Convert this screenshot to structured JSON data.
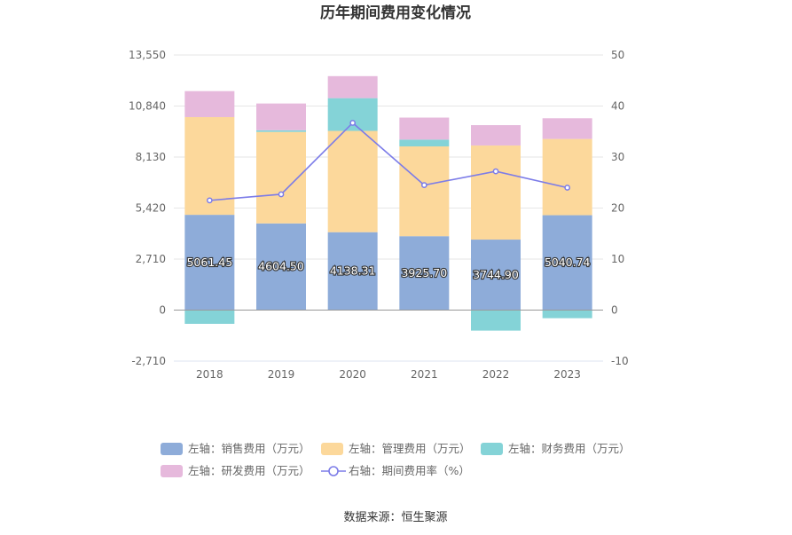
{
  "title": "历年期间费用变化情况",
  "source": "数据来源：恒生聚源",
  "colors": {
    "sales": "#8eacd9",
    "admin": "#fcd89b",
    "finance": "#84d3d7",
    "rd": "#e6b9dc",
    "rate_line": "#7c7ce8"
  },
  "chart_data": {
    "type": "bar",
    "stacked": true,
    "categories": [
      "2018",
      "2019",
      "2020",
      "2021",
      "2022",
      "2023"
    ],
    "series": [
      {
        "name": "左轴：销售费用（万元）",
        "axis": "left",
        "color": "#8eacd9",
        "values": [
          5061.45,
          4604.5,
          4138.31,
          3925.7,
          3744.9,
          5040.74
        ]
      },
      {
        "name": "左轴：管理费用（万元）",
        "axis": "left",
        "color": "#fcd89b",
        "values": [
          5190,
          4860,
          5380,
          4770,
          5000,
          4050
        ]
      },
      {
        "name": "左轴：财务费用（万元）",
        "axis": "left",
        "color": "#84d3d7",
        "values": [
          -730,
          90,
          1740,
          360,
          -1090,
          -430
        ]
      },
      {
        "name": "左轴：研发费用（万元）",
        "axis": "left",
        "color": "#e6b9dc",
        "values": [
          1380,
          1420,
          1170,
          1170,
          1080,
          1100
        ]
      },
      {
        "name": "右轴：期间费用率（%）",
        "axis": "right",
        "type": "line",
        "color": "#7c7ce8",
        "values": [
          21.5,
          22.7,
          36.7,
          24.5,
          27.2,
          24.0
        ]
      }
    ],
    "bar_labels": [
      "5061.45",
      "4604.50",
      "4138.31",
      "3925.70",
      "3744.90",
      "5040.74"
    ],
    "y_left": {
      "ticks": [
        -2710,
        0,
        2710,
        5420,
        8130,
        10840,
        13550
      ],
      "tick_labels": [
        "-2,710",
        "0",
        "2,710",
        "5,420",
        "8,130",
        "10,840",
        "13,550"
      ],
      "range": [
        -2710,
        13550
      ]
    },
    "y_right": {
      "ticks": [
        -10,
        0,
        10,
        20,
        30,
        40,
        50
      ],
      "tick_labels": [
        "-10",
        "0",
        "10",
        "20",
        "30",
        "40",
        "50"
      ],
      "range": [
        -10,
        50
      ]
    },
    "grid": true,
    "legend_position": "bottom"
  }
}
